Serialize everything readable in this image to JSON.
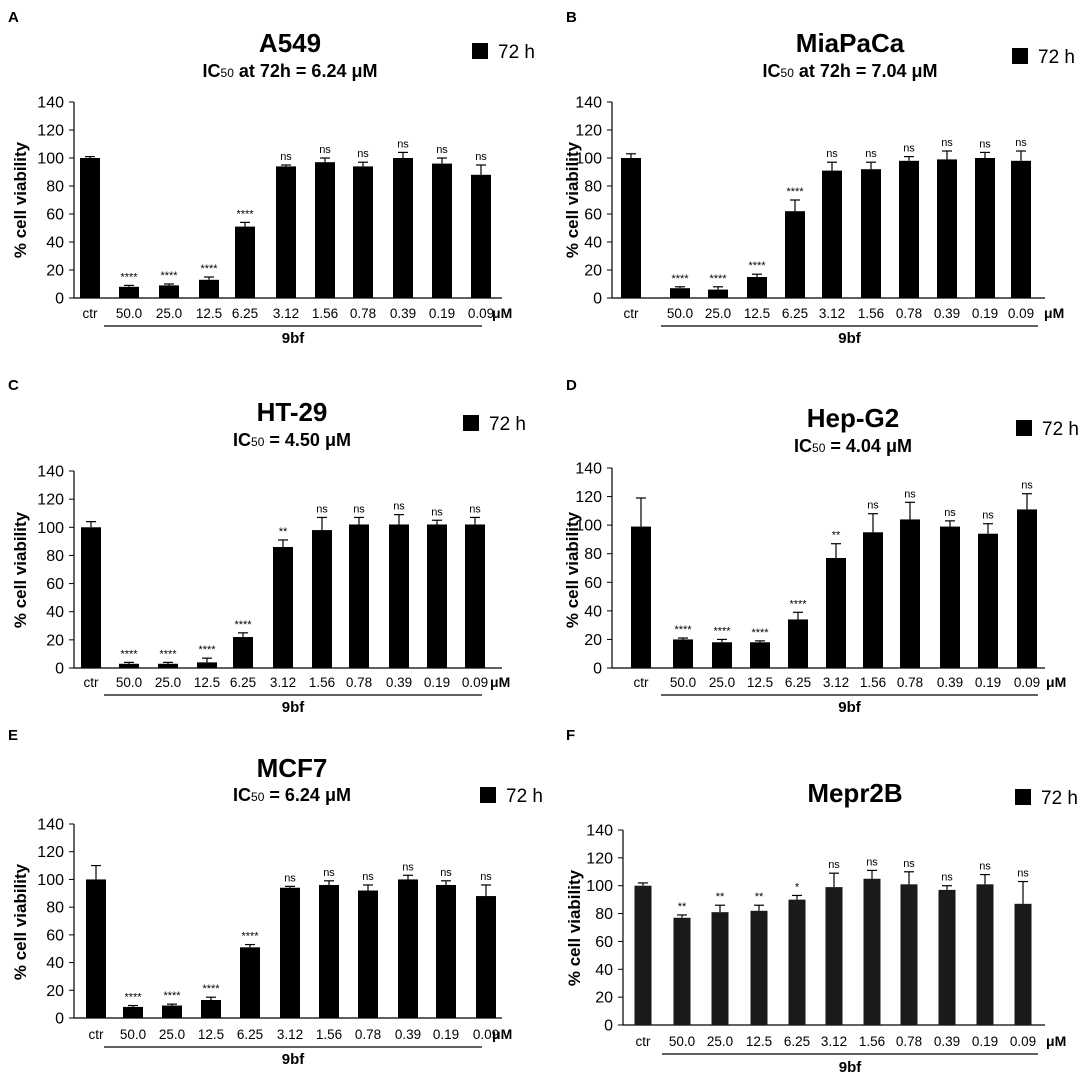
{
  "figure": {
    "panels": [
      "A",
      "B",
      "C",
      "D",
      "E",
      "F"
    ],
    "legend_label": "72 h",
    "ylabel": "% cell viability",
    "unit": "μM",
    "group_label": "9bf"
  },
  "chart_data": [
    {
      "panel": "A",
      "type": "bar",
      "title": "A549",
      "subtitle": "IC50 at 72h = 6.24 μM",
      "categories": [
        "ctr",
        "50.0",
        "25.0",
        "12.5",
        "6.25",
        "3.12",
        "1.56",
        "0.78",
        "0.39",
        "0.19",
        "0.09"
      ],
      "values": [
        100,
        8,
        9,
        13,
        51,
        94,
        97,
        94,
        100,
        96,
        88
      ],
      "errors": [
        1,
        1,
        1,
        2,
        3,
        1,
        3,
        3,
        4,
        4,
        7
      ],
      "significance": [
        "",
        "****",
        "****",
        "****",
        "****",
        "ns",
        "ns",
        "ns",
        "ns",
        "ns",
        "ns"
      ],
      "ylabel": "% cell viability",
      "ylim": [
        0,
        140
      ],
      "yticks": [
        0,
        20,
        40,
        60,
        80,
        100,
        120,
        140
      ],
      "legend": "72 h"
    },
    {
      "panel": "B",
      "type": "bar",
      "title": "MiaPaCa",
      "subtitle": "IC50 at 72h = 7.04 μM",
      "categories": [
        "ctr",
        "50.0",
        "25.0",
        "12.5",
        "6.25",
        "3.12",
        "1.56",
        "0.78",
        "0.39",
        "0.19",
        "0.09"
      ],
      "values": [
        100,
        7,
        6,
        15,
        62,
        91,
        92,
        98,
        99,
        100,
        98
      ],
      "errors": [
        3,
        1,
        2,
        2,
        8,
        6,
        5,
        3,
        6,
        4,
        7
      ],
      "significance": [
        "",
        "****",
        "****",
        "****",
        "****",
        "ns",
        "ns",
        "ns",
        "ns",
        "ns",
        "ns"
      ],
      "ylabel": "% cell viability",
      "ylim": [
        0,
        140
      ],
      "yticks": [
        0,
        20,
        40,
        60,
        80,
        100,
        120,
        140
      ],
      "legend": "72 h"
    },
    {
      "panel": "C",
      "type": "bar",
      "title": "HT-29",
      "subtitle": "IC50 = 4.50 μM",
      "categories": [
        "ctr",
        "50.0",
        "25.0",
        "12.5",
        "6.25",
        "3.12",
        "1.56",
        "0.78",
        "0.39",
        "0.19",
        "0.09"
      ],
      "values": [
        100,
        3,
        3,
        4,
        22,
        86,
        98,
        102,
        102,
        102,
        102
      ],
      "errors": [
        4,
        1,
        1,
        3,
        3,
        5,
        9,
        5,
        7,
        3,
        5
      ],
      "significance": [
        "",
        "****",
        "****",
        "****",
        "****",
        "**",
        "ns",
        "ns",
        "ns",
        "ns",
        "ns"
      ],
      "ylabel": "% cell viability",
      "ylim": [
        0,
        140
      ],
      "yticks": [
        0,
        20,
        40,
        60,
        80,
        100,
        120,
        140
      ],
      "legend": "72 h"
    },
    {
      "panel": "D",
      "type": "bar",
      "title": "Hep-G2",
      "subtitle": "IC50 = 4.04 μM",
      "categories": [
        "ctr",
        "50.0",
        "25.0",
        "12.5",
        "6.25",
        "3.12",
        "1.56",
        "0.78",
        "0.39",
        "0.19",
        "0.09"
      ],
      "values": [
        99,
        20,
        18,
        18,
        34,
        77,
        95,
        104,
        99,
        94,
        111
      ],
      "errors": [
        20,
        1,
        2,
        1,
        5,
        10,
        13,
        12,
        4,
        7,
        11
      ],
      "significance": [
        "",
        "****",
        "****",
        "****",
        "****",
        "**",
        "ns",
        "ns",
        "ns",
        "ns",
        "ns"
      ],
      "ylabel": "% cell viability",
      "ylim": [
        0,
        140
      ],
      "yticks": [
        0,
        20,
        40,
        60,
        80,
        100,
        120,
        140
      ],
      "legend": "72 h"
    },
    {
      "panel": "E",
      "type": "bar",
      "title": "MCF7",
      "subtitle": "IC50 = 6.24 μM",
      "categories": [
        "ctr",
        "50.0",
        "25.0",
        "12.5",
        "6.25",
        "3.12",
        "1.56",
        "0.78",
        "0.39",
        "0.19",
        "0.09"
      ],
      "values": [
        100,
        8,
        9,
        13,
        51,
        94,
        96,
        92,
        100,
        96,
        88
      ],
      "errors": [
        10,
        1,
        1,
        2,
        2,
        1,
        3,
        4,
        3,
        3,
        8
      ],
      "significance": [
        "",
        "****",
        "****",
        "****",
        "****",
        "ns",
        "ns",
        "ns",
        "ns",
        "ns",
        "ns"
      ],
      "ylabel": "% cell viability",
      "ylim": [
        0,
        140
      ],
      "yticks": [
        0,
        20,
        40,
        60,
        80,
        100,
        120,
        140
      ],
      "legend": "72 h"
    },
    {
      "panel": "F",
      "type": "bar",
      "title": "Mepr2B",
      "subtitle": "",
      "categories": [
        "ctr",
        "50.0",
        "25.0",
        "12.5",
        "6.25",
        "3.12",
        "1.56",
        "0.78",
        "0.39",
        "0.19",
        "0.09"
      ],
      "values": [
        100,
        77,
        81,
        82,
        90,
        99,
        105,
        101,
        97,
        101,
        87
      ],
      "errors": [
        2,
        2,
        5,
        4,
        3,
        10,
        6,
        9,
        3,
        7,
        16
      ],
      "significance": [
        "",
        "**",
        "**",
        "**",
        "*",
        "ns",
        "ns",
        "ns",
        "ns",
        "ns",
        "ns"
      ],
      "ylabel": "% cell viability",
      "ylim": [
        0,
        140
      ],
      "yticks": [
        0,
        20,
        40,
        60,
        80,
        100,
        120,
        140
      ],
      "legend": "72 h"
    }
  ]
}
